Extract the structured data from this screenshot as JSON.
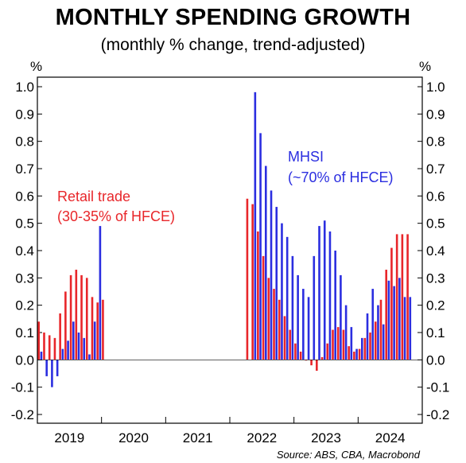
{
  "chart_data": {
    "type": "bar",
    "title": "MONTHLY SPENDING GROWTH",
    "subtitle": "(monthly % change, trend-adjusted)",
    "left_unit": "%",
    "right_unit": "%",
    "ylim": [
      -0.2,
      1.0
    ],
    "yticks": [
      "1.0",
      "0.9",
      "0.8",
      "0.7",
      "0.6",
      "0.5",
      "0.4",
      "0.3",
      "0.2",
      "0.1",
      "0.0",
      "-0.1",
      "-0.2"
    ],
    "ytick_values": [
      1.0,
      0.9,
      0.8,
      0.7,
      0.6,
      0.5,
      0.4,
      0.3,
      0.2,
      0.1,
      0.0,
      -0.1,
      -0.2
    ],
    "x_years": [
      "2019",
      "2020",
      "2021",
      "2022",
      "2023",
      "2024"
    ],
    "x_range": [
      "2019-01",
      "2024-12"
    ],
    "grid": false,
    "colors": {
      "retail": "#e8262a",
      "mhsi": "#2b2ee0"
    },
    "annotations": {
      "retail_line1": "Retail trade",
      "retail_line2": "(30-35% of HFCE)",
      "mhsi_line1": "MHSI",
      "mhsi_line2": "(~70% of HFCE)"
    },
    "source": "Source: ABS, CBA, Macrobond",
    "series": [
      {
        "key": "retail",
        "color": "#e8262a",
        "x": [
          "2019-01",
          "2019-02",
          "2019-03",
          "2019-04",
          "2019-05",
          "2019-06",
          "2019-07",
          "2019-08",
          "2019-09",
          "2019-10",
          "2019-11",
          "2019-12",
          "2020-01",
          "2022-04",
          "2022-05",
          "2022-06",
          "2022-07",
          "2022-08",
          "2022-09",
          "2022-10",
          "2022-11",
          "2022-12",
          "2023-01",
          "2023-02",
          "2023-03",
          "2023-04",
          "2023-05",
          "2023-06",
          "2023-07",
          "2023-08",
          "2023-09",
          "2023-10",
          "2023-11",
          "2023-12",
          "2024-01",
          "2024-02",
          "2024-03",
          "2024-04",
          "2024-05",
          "2024-06",
          "2024-07",
          "2024-08",
          "2024-09",
          "2024-10"
        ],
        "values": [
          0.14,
          0.1,
          0.09,
          0.08,
          0.17,
          0.25,
          0.31,
          0.33,
          0.31,
          0.3,
          0.23,
          0.21,
          0.22,
          0.59,
          0.57,
          0.47,
          0.38,
          0.3,
          0.26,
          0.22,
          0.16,
          0.11,
          0.06,
          0.03,
          0.0,
          -0.02,
          -0.04,
          0.01,
          0.06,
          0.11,
          0.12,
          0.11,
          0.05,
          0.03,
          0.04,
          0.08,
          0.1,
          0.14,
          0.22,
          0.33,
          0.41,
          0.46,
          0.46,
          0.46
        ]
      },
      {
        "key": "mhsi",
        "color": "#2b2ee0",
        "x": [
          "2019-01",
          "2019-02",
          "2019-03",
          "2019-04",
          "2019-05",
          "2019-06",
          "2019-07",
          "2019-08",
          "2019-09",
          "2019-10",
          "2019-11",
          "2019-12",
          "2022-05",
          "2022-06",
          "2022-07",
          "2022-08",
          "2022-09",
          "2022-10",
          "2022-11",
          "2022-12",
          "2023-01",
          "2023-02",
          "2023-03",
          "2023-04",
          "2023-05",
          "2023-06",
          "2023-07",
          "2023-08",
          "2023-09",
          "2023-10",
          "2023-11",
          "2023-12",
          "2024-01",
          "2024-02",
          "2024-03",
          "2024-04",
          "2024-05",
          "2024-06",
          "2024-07",
          "2024-08",
          "2024-09",
          "2024-10"
        ],
        "values": [
          0.03,
          -0.06,
          -0.1,
          -0.06,
          0.04,
          0.07,
          0.14,
          0.1,
          0.08,
          0.02,
          0.14,
          0.49,
          0.98,
          0.83,
          0.71,
          0.62,
          0.56,
          0.5,
          0.45,
          0.38,
          0.31,
          0.26,
          0.23,
          0.38,
          0.49,
          0.51,
          0.47,
          0.4,
          0.31,
          0.2,
          0.12,
          0.04,
          0.08,
          0.17,
          0.26,
          0.2,
          0.13,
          0.29,
          0.27,
          0.3,
          0.23,
          0.23
        ]
      }
    ]
  }
}
